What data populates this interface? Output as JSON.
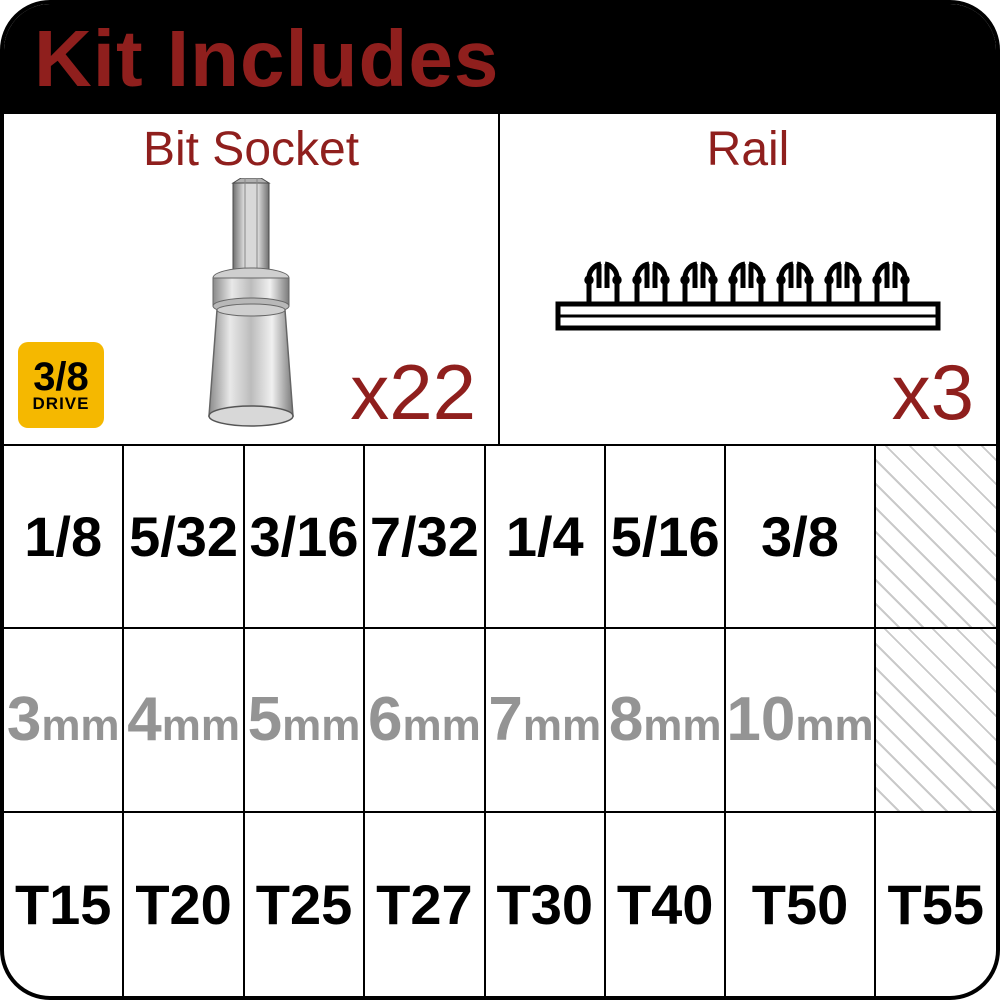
{
  "header": {
    "title": "Kit Includes"
  },
  "sections": {
    "left": {
      "label": "Bit Socket",
      "count": "x22",
      "drive_badge": {
        "fraction": "3/8",
        "word": "DRIVE",
        "bg": "#f5b800"
      }
    },
    "right": {
      "label": "Rail",
      "count": "x3"
    }
  },
  "colors": {
    "dark_red": "#8f1f1d",
    "black": "#000000",
    "gray_text": "#949494",
    "hatch": "#c9c9c9",
    "badge_yellow": "#f5b800"
  },
  "table": {
    "type": "table",
    "columns": 8,
    "rows_count": 3,
    "rows": [
      {
        "color": "black",
        "values": [
          "1/8",
          "5/32",
          "3/16",
          "7/32",
          "1/4",
          "5/16",
          "3/8",
          null
        ]
      },
      {
        "color": "gray",
        "unit": "mm",
        "values": [
          "3",
          "4",
          "5",
          "6",
          "7",
          "8",
          "10",
          null
        ]
      },
      {
        "color": "black",
        "values": [
          "T15",
          "T20",
          "T25",
          "T27",
          "T30",
          "T40",
          "T50",
          "T55"
        ]
      }
    ]
  }
}
